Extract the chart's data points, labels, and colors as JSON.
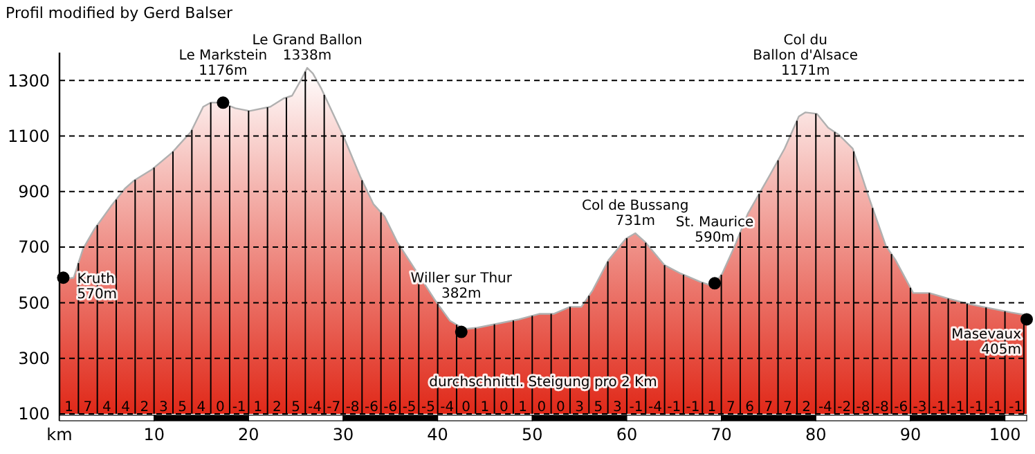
{
  "chart_data": {
    "type": "area",
    "title": "Profil modified by Gerd Balser",
    "xlim": [
      0,
      102.3
    ],
    "xticks": [
      {
        "value": 0,
        "label": "km"
      },
      10,
      20,
      30,
      40,
      50,
      60,
      70,
      80,
      90,
      100
    ],
    "ylim": [
      100,
      1400
    ],
    "yticks": [
      100,
      300,
      500,
      700,
      900,
      1100,
      1300
    ],
    "grid": true,
    "series": [
      {
        "color": "#e02818",
        "x": [
          0,
          0.6,
          1.5,
          2.5,
          3.7,
          5.4,
          6.9,
          7.9,
          9.8,
          11.9,
          13.9,
          15.2,
          16.0,
          17.1,
          18.6,
          20.1,
          22.3,
          23.7,
          24.6,
          25.6,
          26.2,
          26.8,
          27.7,
          29.9,
          31.8,
          33.2,
          34.4,
          35.7,
          37.6,
          39.8,
          41.3,
          42.8,
          44.2,
          46.4,
          48.6,
          50.8,
          52.3,
          54.0,
          55.2,
          56.4,
          58.1,
          59.9,
          60.9,
          61.9,
          64.0,
          65.7,
          67.8,
          69.1,
          70.1,
          71.3,
          72.8,
          74.9,
          76.7,
          78.2,
          78.9,
          80.1,
          81.3,
          82.4,
          83.9,
          85.7,
          87.4,
          88.4,
          90.3,
          92.0,
          94.0,
          96.2,
          98.4,
          100.6,
          102.3
        ],
        "values": [
          600,
          585,
          590,
          695,
          765,
          845,
          910,
          940,
          980,
          1040,
          1115,
          1205,
          1220,
          1220,
          1200,
          1190,
          1205,
          1235,
          1245,
          1305,
          1345,
          1325,
          1270,
          1110,
          955,
          855,
          810,
          720,
          620,
          505,
          435,
          405,
          410,
          425,
          440,
          460,
          460,
          485,
          485,
          545,
          655,
          730,
          750,
          720,
          635,
          605,
          575,
          560,
          605,
          695,
          820,
          945,
          1055,
          1170,
          1185,
          1180,
          1130,
          1105,
          1055,
          870,
          705,
          655,
          535,
          535,
          515,
          495,
          480,
          465,
          455
        ]
      },
      {
        "type": "scatter",
        "color": "#000000",
        "marker": "circle",
        "x": [
          0.4,
          17.3,
          42.5,
          69.3,
          102.3
        ],
        "values": [
          590,
          1220,
          395,
          570,
          440
        ]
      }
    ],
    "annotations": [
      {
        "text": "Kruth\n570m",
        "x": 0.4,
        "y": 590
      },
      {
        "text": "Le Markstein\n1176m",
        "x": 17.3,
        "y": 1220
      },
      {
        "text": "Le Grand Ballon\n1338m",
        "x": 26.2,
        "y": 1345
      },
      {
        "text": "Willer sur Thur\n382m",
        "x": 42.5,
        "y": 395
      },
      {
        "text": "Col de Bussang\n731m",
        "x": 60.9,
        "y": 750
      },
      {
        "text": "St. Maurice\n590m",
        "x": 69.3,
        "y": 570
      },
      {
        "text": "Col du\nBallon d'Alsace\n1171m",
        "x": 78.9,
        "y": 1185
      },
      {
        "text": "Masevaux\n405m",
        "x": 102.3,
        "y": 440
      },
      "durchschnittl. Steigung pro 2 Km",
      {
        "text": "1",
        "x": 1,
        "y": 110
      },
      {
        "text": "7",
        "x": 3,
        "y": 110
      },
      {
        "text": "4",
        "x": 5,
        "y": 110
      },
      {
        "text": "4",
        "x": 7,
        "y": 110
      },
      {
        "text": "2",
        "x": 9,
        "y": 110
      },
      {
        "text": "3",
        "x": 11,
        "y": 110
      },
      {
        "text": "5",
        "x": 13,
        "y": 110
      },
      {
        "text": "4",
        "x": 15,
        "y": 110
      },
      {
        "text": "0",
        "x": 17,
        "y": 110
      },
      {
        "text": "-1",
        "x": 19,
        "y": 110
      },
      {
        "text": "1",
        "x": 21,
        "y": 110
      },
      {
        "text": "2",
        "x": 23,
        "y": 110
      },
      {
        "text": "5",
        "x": 25,
        "y": 110
      },
      {
        "text": "-4",
        "x": 27,
        "y": 110
      },
      {
        "text": "-7",
        "x": 29,
        "y": 110
      },
      {
        "text": "-8",
        "x": 31,
        "y": 110
      },
      {
        "text": "-6",
        "x": 33,
        "y": 110
      },
      {
        "text": "-6",
        "x": 35,
        "y": 110
      },
      {
        "text": "-5",
        "x": 37,
        "y": 110
      },
      {
        "text": "-5",
        "x": 39,
        "y": 110
      },
      {
        "text": "-4",
        "x": 41,
        "y": 110
      },
      {
        "text": "0",
        "x": 43,
        "y": 110
      },
      {
        "text": "1",
        "x": 45,
        "y": 110
      },
      {
        "text": "0",
        "x": 47,
        "y": 110
      },
      {
        "text": "1",
        "x": 49,
        "y": 110
      },
      {
        "text": "0",
        "x": 51,
        "y": 110
      },
      {
        "text": "0",
        "x": 53,
        "y": 110
      },
      {
        "text": "3",
        "x": 55,
        "y": 110
      },
      {
        "text": "5",
        "x": 57,
        "y": 110
      },
      {
        "text": "3",
        "x": 59,
        "y": 110
      },
      {
        "text": "-1",
        "x": 61,
        "y": 110
      },
      {
        "text": "-4",
        "x": 63,
        "y": 110
      },
      {
        "text": "-1",
        "x": 65,
        "y": 110
      },
      {
        "text": "-1",
        "x": 67,
        "y": 110
      },
      {
        "text": "1",
        "x": 69,
        "y": 110
      },
      {
        "text": "7",
        "x": 71,
        "y": 110
      },
      {
        "text": "6",
        "x": 73,
        "y": 110
      },
      {
        "text": "7",
        "x": 75,
        "y": 110
      },
      {
        "text": "7",
        "x": 77,
        "y": 110
      },
      {
        "text": "2",
        "x": 79,
        "y": 110
      },
      {
        "text": "-4",
        "x": 81,
        "y": 110
      },
      {
        "text": "-2",
        "x": 83,
        "y": 110
      },
      {
        "text": "-8",
        "x": 85,
        "y": 110
      },
      {
        "text": "-8",
        "x": 87,
        "y": 110
      },
      {
        "text": "-6",
        "x": 89,
        "y": 110
      },
      {
        "text": "-3",
        "x": 91,
        "y": 110
      },
      {
        "text": "-1",
        "x": 93,
        "y": 110
      },
      {
        "text": "-1",
        "x": 95,
        "y": 110
      },
      {
        "text": "-1",
        "x": 97,
        "y": 110
      },
      {
        "text": "-1",
        "x": 99,
        "y": 110
      },
      {
        "text": "-1",
        "x": 101.15,
        "y": 110
      }
    ]
  }
}
